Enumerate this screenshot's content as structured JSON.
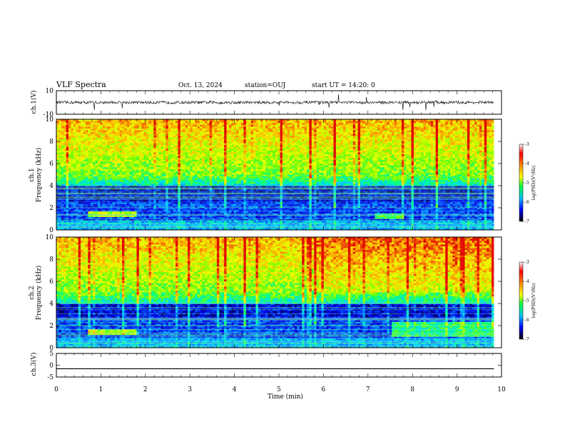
{
  "header": {
    "title": "VLF Spectra",
    "date": "Oct. 13, 2024",
    "station": "station=OUJ",
    "start": "start UT =  14:20: 0"
  },
  "colorbar": {
    "label": "log(PSD)(V²/Hz)",
    "ticks": [
      "-3",
      "-4",
      "-5",
      "-6",
      "-7"
    ]
  },
  "chart_data": [
    {
      "type": "line",
      "panel": "ch1-waveform",
      "ylabel": "ch.1(V)",
      "ylim": [
        -10,
        10
      ],
      "yticks": [
        "10",
        "-10"
      ],
      "x": [
        0,
        9.83
      ],
      "y": [
        0,
        0
      ],
      "note_series": "noisy waveform near 0 V with sporadic spikes"
    },
    {
      "type": "heatmap",
      "panel": "ch1-spectrogram",
      "ylabel": "ch.1\nFrequency (kHz)",
      "ylim": [
        0,
        10
      ],
      "yticks": [
        "0",
        "2",
        "4",
        "6",
        "8",
        "10"
      ],
      "xlim": [
        0,
        10
      ],
      "color_scale": {
        "min": -7,
        "max": -3,
        "label": "log(PSD)(V²/Hz)"
      },
      "colors": [
        "#000080",
        "#0000ff",
        "#00c0ff",
        "#00ff80",
        "#c0ff00",
        "#ffff00",
        "#ff8000",
        "#e00000"
      ]
    },
    {
      "type": "heatmap",
      "panel": "ch2-spectrogram",
      "ylabel": "ch.2\nFrequency (kHz)",
      "ylim": [
        0,
        10
      ],
      "yticks": [
        "0",
        "2",
        "4",
        "6",
        "8",
        "10"
      ],
      "xlim": [
        0,
        10
      ],
      "color_scale": {
        "min": -7,
        "max": -3,
        "label": "log(PSD)(V²/Hz)"
      }
    },
    {
      "type": "line",
      "panel": "ch3-waveform",
      "ylabel": "ch.3(V)",
      "ylim": [
        -5,
        5
      ],
      "yticks": [
        "5",
        "0",
        "-5"
      ],
      "x": [
        0,
        9.83
      ],
      "y": [
        -1.5,
        -1.5
      ]
    }
  ],
  "xaxis": {
    "label": "Time (min)",
    "ticks": [
      "0",
      "1",
      "2",
      "3",
      "4",
      "5",
      "6",
      "7",
      "8",
      "9",
      "10"
    ],
    "range": [
      0,
      10
    ]
  }
}
